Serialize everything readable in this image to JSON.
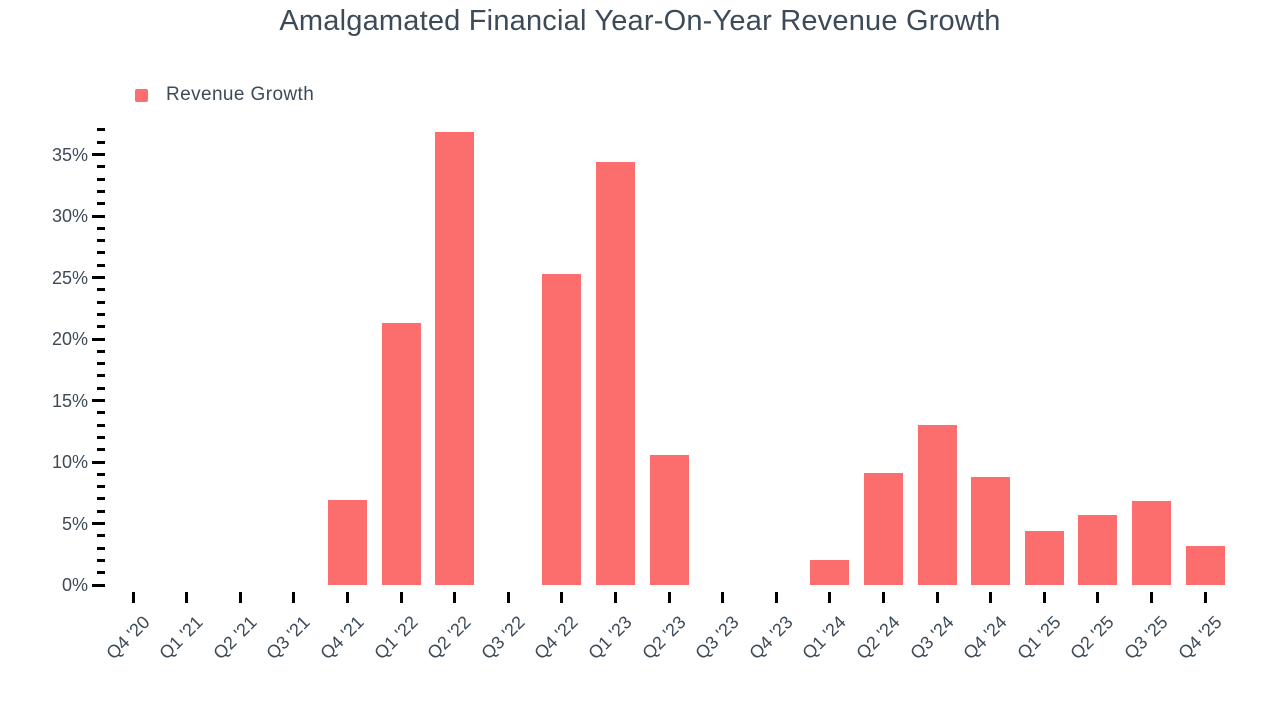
{
  "title": "Amalgamated Financial Year-On-Year Revenue Growth",
  "legend": {
    "label": "Revenue Growth"
  },
  "colors": {
    "bar": "#fc6d6d",
    "text": "#3d4a57",
    "tick": "#000000",
    "background": "#ffffff"
  },
  "chart_data": {
    "type": "bar",
    "title": "Amalgamated Financial Year-On-Year Revenue Growth",
    "categories": [
      "Q4 '20",
      "Q1 '21",
      "Q2 '21",
      "Q3 '21",
      "Q4 '21",
      "Q1 '22",
      "Q2 '22",
      "Q3 '22",
      "Q4 '22",
      "Q1 '23",
      "Q2 '23",
      "Q3 '23",
      "Q4 '23",
      "Q1 '24",
      "Q2 '24",
      "Q3 '24",
      "Q4 '24",
      "Q1 '25",
      "Q2 '25",
      "Q3 '25",
      "Q4 '25"
    ],
    "series": [
      {
        "name": "Revenue Growth",
        "values": [
          null,
          null,
          null,
          null,
          6.9,
          21.3,
          36.8,
          null,
          25.3,
          34.4,
          10.6,
          null,
          null,
          2.0,
          9.1,
          13.0,
          8.8,
          4.4,
          5.7,
          6.8,
          3.2
        ]
      }
    ],
    "xlabel": "",
    "ylabel": "",
    "ylim": [
      0,
      37
    ],
    "y_major_ticks": [
      0,
      5,
      10,
      15,
      20,
      25,
      30,
      35
    ],
    "y_minor_tick_step": 1,
    "y_tick_suffix": "%",
    "x_label_rotation": -45,
    "grid": false,
    "legend_position": "top-left"
  }
}
